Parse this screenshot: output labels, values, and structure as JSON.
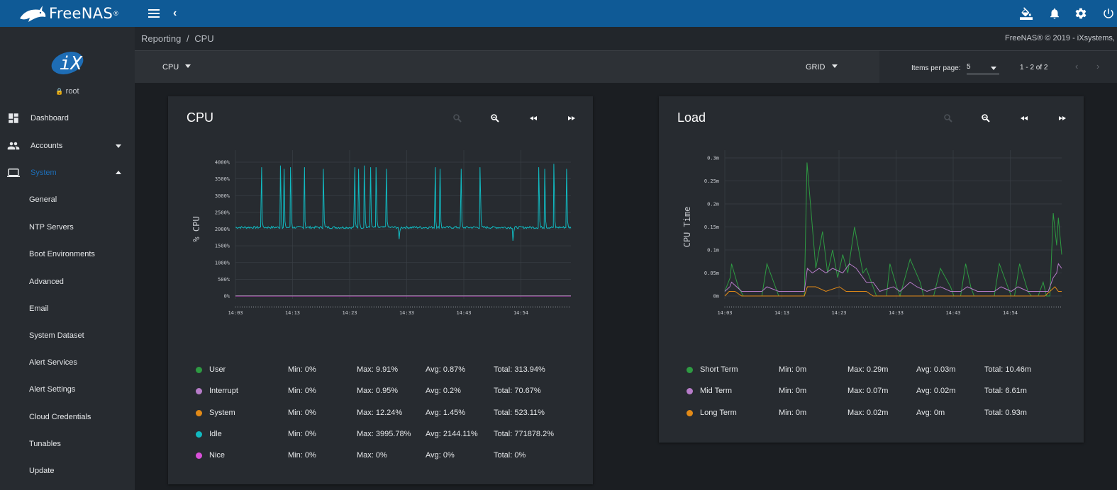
{
  "app": {
    "brand": "FreeNAS",
    "brand_mark": "®"
  },
  "sidebar": {
    "user": "root",
    "items": [
      {
        "label": "Dashboard",
        "icon": "dashboard-icon"
      },
      {
        "label": "Accounts",
        "icon": "people-icon"
      },
      {
        "label": "System",
        "icon": "computer-icon"
      }
    ],
    "system_subitems": [
      "General",
      "NTP Servers",
      "Boot Environments",
      "Advanced",
      "Email",
      "System Dataset",
      "Alert Services",
      "Alert Settings",
      "Cloud Credentials",
      "Tunables",
      "Update"
    ]
  },
  "breadcrumb": {
    "root": "Reporting",
    "separator": "/",
    "current": "CPU"
  },
  "copyright": "FreeNAS® © 2019 - iXsystems,",
  "toolbar": {
    "report_select": "CPU",
    "layout_select": "GRID",
    "items_per_page_label": "Items per page:",
    "items_per_page_value": "5",
    "range": "1 - 2 of 2"
  },
  "colors": {
    "topbar": "#0f5a96",
    "accent": "#1e6db5",
    "green": "#2e9a42",
    "lavender": "#b77cc9",
    "orange": "#e28a17",
    "cyan": "#11b9c0",
    "magenta": "#d94fd9"
  },
  "cards": [
    {
      "title": "CPU",
      "legend": [
        {
          "name": "User",
          "color": "#2e9a42",
          "min": "Min: 0%",
          "max": "Max: 9.91%",
          "avg": "Avg: 0.87%",
          "total": "Total: 313.94%"
        },
        {
          "name": "Interrupt",
          "color": "#b77cc9",
          "min": "Min: 0%",
          "max": "Max: 0.95%",
          "avg": "Avg: 0.2%",
          "total": "Total: 70.67%"
        },
        {
          "name": "System",
          "color": "#e28a17",
          "min": "Min: 0%",
          "max": "Max: 12.24%",
          "avg": "Avg: 1.45%",
          "total": "Total: 523.11%"
        },
        {
          "name": "Idle",
          "color": "#11b9c0",
          "min": "Min: 0%",
          "max": "Max: 3995.78%",
          "avg": "Avg: 2144.11%",
          "total": "Total: 771878.2%"
        },
        {
          "name": "Nice",
          "color": "#d94fd9",
          "min": "Min: 0%",
          "max": "Max: 0%",
          "avg": "Avg: 0%",
          "total": "Total: 0%"
        }
      ]
    },
    {
      "title": "Load",
      "legend": [
        {
          "name": "Short Term",
          "color": "#2e9a42",
          "min": "Min: 0m",
          "max": "Max: 0.29m",
          "avg": "Avg: 0.03m",
          "total": "Total: 10.46m"
        },
        {
          "name": "Mid Term",
          "color": "#b77cc9",
          "min": "Min: 0m",
          "max": "Max: 0.07m",
          "avg": "Avg: 0.02m",
          "total": "Total: 6.61m"
        },
        {
          "name": "Long Term",
          "color": "#e28a17",
          "min": "Min: 0m",
          "max": "Max: 0.02m",
          "avg": "Avg: 0m",
          "total": "Total: 0.93m"
        }
      ]
    }
  ],
  "chart_data": [
    {
      "type": "line",
      "ylabel": "% CPU",
      "x_ticks": [
        "14:03",
        "14:13",
        "14:23",
        "14:33",
        "14:43",
        "14:54"
      ],
      "y_ticks": [
        "0%",
        "500%",
        "1000%",
        "1500%",
        "2000%",
        "2500%",
        "3000%",
        "3500%",
        "4000%"
      ],
      "ylim": [
        0,
        4200
      ],
      "grid": true,
      "series": [
        {
          "name": "Idle",
          "color": "#11b9c0",
          "baseline": 2050,
          "spikes": [
            {
              "x": 0.078,
              "y": 3850
            },
            {
              "x": 0.134,
              "y": 3900
            },
            {
              "x": 0.145,
              "y": 3800
            },
            {
              "x": 0.164,
              "y": 3850
            },
            {
              "x": 0.206,
              "y": 3850
            },
            {
              "x": 0.262,
              "y": 3800
            },
            {
              "x": 0.356,
              "y": 3850
            },
            {
              "x": 0.367,
              "y": 3800
            },
            {
              "x": 0.384,
              "y": 3900
            },
            {
              "x": 0.403,
              "y": 3850
            },
            {
              "x": 0.419,
              "y": 3850
            },
            {
              "x": 0.45,
              "y": 3800
            },
            {
              "x": 0.488,
              "y": 1700
            },
            {
              "x": 0.596,
              "y": 3850
            },
            {
              "x": 0.61,
              "y": 3800
            },
            {
              "x": 0.673,
              "y": 3800
            },
            {
              "x": 0.729,
              "y": 3850
            },
            {
              "x": 0.827,
              "y": 1650
            },
            {
              "x": 0.904,
              "y": 3850
            },
            {
              "x": 0.922,
              "y": 3800
            },
            {
              "x": 0.949,
              "y": 3950
            },
            {
              "x": 0.987,
              "y": 3800
            }
          ]
        },
        {
          "name": "User",
          "color": "#2e9a42",
          "baseline": 10
        },
        {
          "name": "Nice",
          "color": "#d94fd9",
          "baseline": 0
        }
      ]
    },
    {
      "type": "line",
      "ylabel": "CPU Time",
      "x_ticks": [
        "14:03",
        "14:13",
        "14:23",
        "14:33",
        "14:43",
        "14:54"
      ],
      "y_ticks": [
        "0m",
        "0.05m",
        "0.1m",
        "0.15m",
        "0.2m",
        "0.25m",
        "0.3m"
      ],
      "ylim": [
        0,
        0.3
      ],
      "grid": true,
      "series": [
        {
          "name": "Short Term",
          "color": "#2e9a42",
          "points": [
            [
              0,
              0.01
            ],
            [
              0.016,
              0.04
            ],
            [
              0.02,
              0.07
            ],
            [
              0.04,
              0.02
            ],
            [
              0.055,
              0.0
            ],
            [
              0.11,
              0.0
            ],
            [
              0.125,
              0.07
            ],
            [
              0.15,
              0.02
            ],
            [
              0.16,
              0.0
            ],
            [
              0.236,
              0.0
            ],
            [
              0.244,
              0.29
            ],
            [
              0.27,
              0.06
            ],
            [
              0.29,
              0.14
            ],
            [
              0.305,
              0.05
            ],
            [
              0.32,
              0.1
            ],
            [
              0.335,
              0.04
            ],
            [
              0.35,
              0.09
            ],
            [
              0.365,
              0.05
            ],
            [
              0.385,
              0.15
            ],
            [
              0.41,
              0.05
            ],
            [
              0.42,
              0.06
            ],
            [
              0.44,
              0.02
            ],
            [
              0.45,
              0.0
            ],
            [
              0.48,
              0.0
            ],
            [
              0.49,
              0.07
            ],
            [
              0.51,
              0.02
            ],
            [
              0.52,
              0.0
            ],
            [
              0.52,
              0.0
            ],
            [
              0.55,
              0.08
            ],
            [
              0.58,
              0.03
            ],
            [
              0.59,
              0.0
            ],
            [
              0.62,
              0.0
            ],
            [
              0.64,
              0.06
            ],
            [
              0.67,
              0.02
            ],
            [
              0.68,
              0.0
            ],
            [
              0.7,
              0.0
            ],
            [
              0.715,
              0.07
            ],
            [
              0.73,
              0.02
            ],
            [
              0.74,
              0.0
            ],
            [
              0.8,
              0.0
            ],
            [
              0.815,
              0.07
            ],
            [
              0.84,
              0.02
            ],
            [
              0.85,
              0.0
            ],
            [
              0.86,
              0.0
            ],
            [
              0.875,
              0.07
            ],
            [
              0.9,
              0.01
            ],
            [
              0.91,
              0.0
            ],
            [
              0.93,
              0.0
            ],
            [
              0.945,
              0.03
            ],
            [
              0.955,
              0.0
            ],
            [
              0.965,
              0.0
            ],
            [
              0.975,
              0.18
            ],
            [
              0.985,
              0.11
            ],
            [
              0.99,
              0.17
            ],
            [
              1.0,
              0.09
            ]
          ]
        },
        {
          "name": "Mid Term",
          "color": "#b77cc9",
          "points": [
            [
              0,
              0.01
            ],
            [
              0.015,
              0.02
            ],
            [
              0.02,
              0.03
            ],
            [
              0.05,
              0.01
            ],
            [
              0.11,
              0.01
            ],
            [
              0.125,
              0.02
            ],
            [
              0.16,
              0.01
            ],
            [
              0.236,
              0.01
            ],
            [
              0.245,
              0.06
            ],
            [
              0.26,
              0.05
            ],
            [
              0.28,
              0.06
            ],
            [
              0.3,
              0.05
            ],
            [
              0.32,
              0.06
            ],
            [
              0.35,
              0.05
            ],
            [
              0.37,
              0.07
            ],
            [
              0.39,
              0.06
            ],
            [
              0.41,
              0.04
            ],
            [
              0.42,
              0.03
            ],
            [
              0.44,
              0.03
            ],
            [
              0.46,
              0.01
            ],
            [
              0.5,
              0.02
            ],
            [
              0.52,
              0.01
            ],
            [
              0.55,
              0.03
            ],
            [
              0.57,
              0.02
            ],
            [
              0.6,
              0.01
            ],
            [
              0.64,
              0.02
            ],
            [
              0.67,
              0.01
            ],
            [
              0.7,
              0.01
            ],
            [
              0.72,
              0.02
            ],
            [
              0.75,
              0.01
            ],
            [
              0.8,
              0.01
            ],
            [
              0.82,
              0.02
            ],
            [
              0.85,
              0.01
            ],
            [
              0.87,
              0.02
            ],
            [
              0.9,
              0.01
            ],
            [
              0.93,
              0.01
            ],
            [
              0.96,
              0.01
            ],
            [
              0.975,
              0.04
            ],
            [
              0.985,
              0.05
            ],
            [
              0.99,
              0.07
            ],
            [
              1.0,
              0.06
            ]
          ]
        },
        {
          "name": "Long Term",
          "color": "#e28a17",
          "points": [
            [
              0,
              0.0
            ],
            [
              0.013,
              0.01
            ],
            [
              0.03,
              0.01
            ],
            [
              0.05,
              0.0
            ],
            [
              0.236,
              0.0
            ],
            [
              0.245,
              0.02
            ],
            [
              0.27,
              0.02
            ],
            [
              0.3,
              0.01
            ],
            [
              0.34,
              0.02
            ],
            [
              0.36,
              0.01
            ],
            [
              0.39,
              0.01
            ],
            [
              0.42,
              0.01
            ],
            [
              0.44,
              0.0
            ],
            [
              0.48,
              0.0
            ],
            [
              0.9,
              0.0
            ],
            [
              0.95,
              0.0
            ],
            [
              0.98,
              0.02
            ],
            [
              0.99,
              0.01
            ],
            [
              1.0,
              0.01
            ]
          ]
        }
      ]
    }
  ]
}
